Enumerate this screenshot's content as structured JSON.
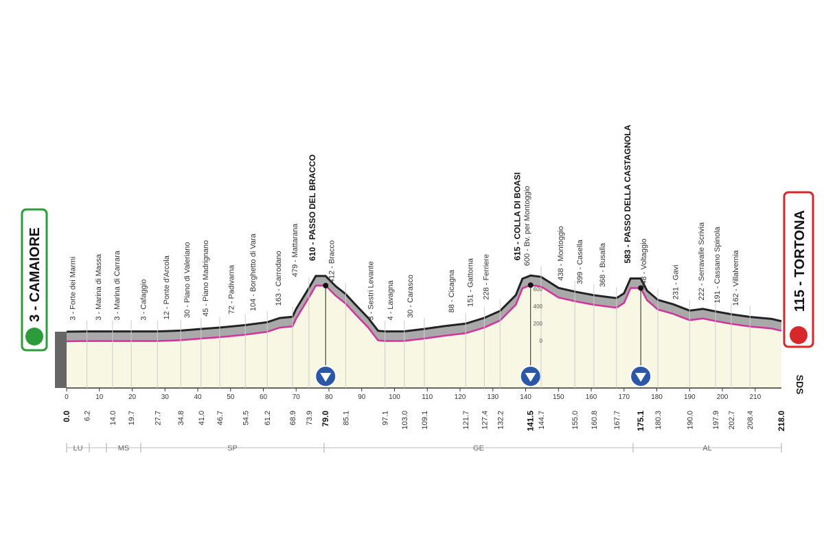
{
  "start": "3 - CAMAIORE",
  "finish": "115 - TORTONA",
  "brand": "SDS",
  "start_km": "0.0",
  "finish_km": "218.0",
  "waypoints": [
    {
      "label": "3 - Forte dei Marmi",
      "km": "6.2"
    },
    {
      "label": "3 - Marina di Massa",
      "km": "14.0"
    },
    {
      "label": "3 - Marina di Carrara",
      "km": "19.7"
    },
    {
      "label": "3 - Cafaggio",
      "km": "27.7"
    },
    {
      "label": "12 - Ponte d'Arcola",
      "km": "34.8"
    },
    {
      "label": "30 - Piano di Valeriano",
      "km": "41.0"
    },
    {
      "label": "45 - Piano Madrignano",
      "km": "46.7"
    },
    {
      "label": "72 - Padivarna",
      "km": "54.5"
    },
    {
      "label": "104 - Borghetto di Vara",
      "km": "61.2"
    },
    {
      "label": "163 - Carrodano",
      "km": "68.9"
    },
    {
      "label": "479 - Mattarana",
      "km": "73.9"
    },
    {
      "label": "610 - PASSO DEL BRACCO",
      "km": "79.0",
      "summit": true
    },
    {
      "label": "412 - Bracco",
      "km": "85.1"
    },
    {
      "label": "3 - Sestri Levante",
      "km": "97.1"
    },
    {
      "label": "4 - Lavagna",
      "km": "103.0"
    },
    {
      "label": "30 - Carasco",
      "km": "109.1"
    },
    {
      "label": "88 - Cicagna",
      "km": "121.7"
    },
    {
      "label": "151 - Gattorna",
      "km": "127.4"
    },
    {
      "label": "228 - Ferriere",
      "km": "132.2"
    },
    {
      "label": "615 - COLLA DI BOASI",
      "km": "141.5",
      "summit": true
    },
    {
      "label": "600 - Bv. per Montoggio",
      "km": "144.7"
    },
    {
      "label": "438 - Montoggio",
      "km": "155.0"
    },
    {
      "label": "399 - Casella",
      "km": "160.8"
    },
    {
      "label": "368 - Busalla",
      "km": "167.7"
    },
    {
      "label": "583 - PASSO DELLA CASTAGNOLA",
      "km": "175.1",
      "summit": true
    },
    {
      "label": "348 - Voltaggio",
      "km": "180.3"
    },
    {
      "label": "231 - Gavi",
      "km": "190.0"
    },
    {
      "label": "222 - Serravalle Scrivia",
      "km": "197.9"
    },
    {
      "label": "191 - Cassano Spinola",
      "km": "202.7"
    },
    {
      "label": "162 - Villalvernia",
      "km": "208.4"
    }
  ],
  "km_axis": [
    "0",
    "10",
    "20",
    "30",
    "40",
    "50",
    "60",
    "70",
    "80",
    "90",
    "100",
    "110",
    "120",
    "130",
    "140",
    "150",
    "160",
    "170",
    "180",
    "190",
    "200",
    "210"
  ],
  "provinces": [
    "LU",
    "MS",
    "SP",
    "GE",
    "AL"
  ],
  "scale": [
    "600",
    "400",
    "200",
    "0"
  ]
}
